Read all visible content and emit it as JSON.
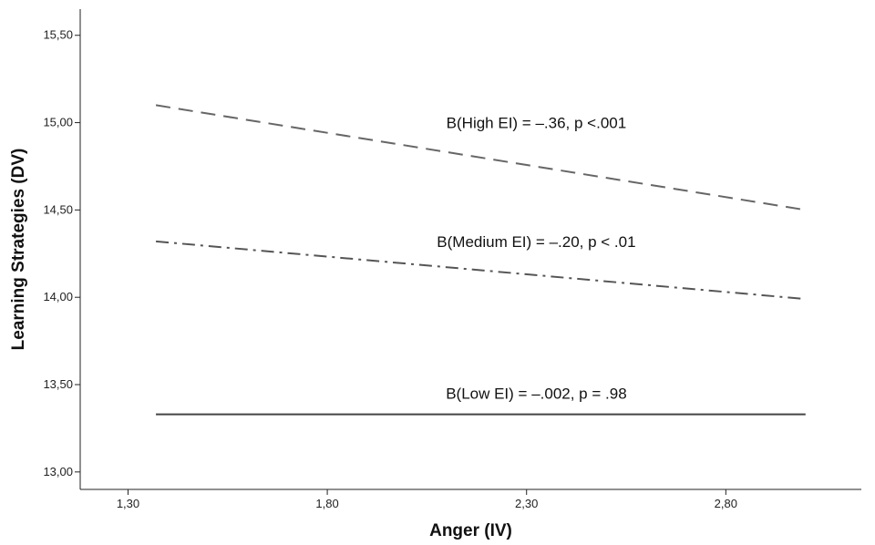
{
  "chart_data": {
    "type": "line",
    "title": "",
    "xlabel": "Anger (IV)",
    "ylabel": "Learning Strategies (DV)",
    "xlim": [
      1.18,
      3.14
    ],
    "ylim": [
      12.9,
      15.65
    ],
    "x_ticks": [
      1.3,
      1.8,
      2.3,
      2.8
    ],
    "x_tick_labels": [
      "1,30",
      "1,80",
      "2,30",
      "2,80"
    ],
    "y_ticks": [
      13.0,
      13.5,
      14.0,
      14.5,
      15.0,
      15.5
    ],
    "y_tick_labels": [
      "13,00",
      "13,50",
      "14,00",
      "14,50",
      "15,00",
      "15,50"
    ],
    "grid": false,
    "series": [
      {
        "x": [
          1.37,
          3.0
        ],
        "values": [
          15.1,
          14.5
        ],
        "style": "dashed",
        "color": "#666666",
        "annotation": "B(High EI) = –.36, p <.001"
      },
      {
        "x": [
          1.37,
          3.0
        ],
        "values": [
          14.32,
          13.99
        ],
        "style": "dashdot",
        "color": "#555555",
        "annotation": "B(Medium EI) = –.20, p < .01"
      },
      {
        "x": [
          1.37,
          3.0
        ],
        "values": [
          13.33,
          13.33
        ],
        "style": "solid",
        "color": "#444444",
        "annotation": "B(Low EI) = –.002, p = .98"
      }
    ]
  }
}
